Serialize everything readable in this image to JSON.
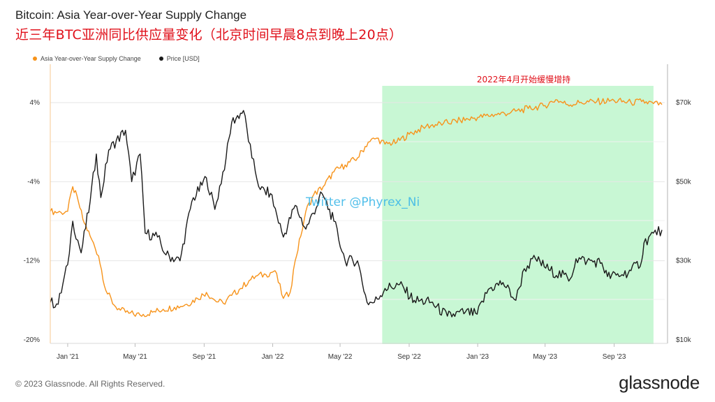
{
  "title": "Bitcoin: Asia Year-over-Year Supply Change",
  "subtitle_cn": "近三年BTC亚洲同比供应量变化（北京时间早晨8点到晚上20点）",
  "legend": [
    {
      "name": "Asia Year-over-Year Supply Change",
      "color": "#f7931a"
    },
    {
      "name": "Price [USD]",
      "color": "#1a1a1a"
    }
  ],
  "annotation": "2022年4月开始缓慢增持",
  "watermark": "Twitter @Phyrex_Ni",
  "footer": {
    "copyright": "© 2023 Glassnode. All Rights Reserved.",
    "logo": "glassnode"
  },
  "colors": {
    "supply": "#f7931a",
    "price": "#1a1a1a",
    "highlight": "#c8f7d4",
    "annotation": "#e0101a",
    "watermark": "#3fb8e8"
  },
  "chart_data": {
    "type": "line",
    "x_ticks": [
      "Jan '21",
      "May '21",
      "Sep '21",
      "Jan '22",
      "May '22",
      "Sep '22",
      "Jan '23",
      "May '23",
      "Sep '23"
    ],
    "x_tick_dates": [
      "2021-01-01",
      "2021-05-01",
      "2021-09-01",
      "2022-01-01",
      "2022-05-01",
      "2022-09-01",
      "2023-01-01",
      "2023-05-01",
      "2023-09-01"
    ],
    "x_range": [
      "2020-12-01",
      "2023-11-30"
    ],
    "y_left": {
      "ticks": [
        "4%",
        "-4%",
        "-12%",
        "-20%"
      ],
      "tick_values": [
        4,
        -4,
        -12,
        -20
      ],
      "range": [
        -20,
        7
      ]
    },
    "y_right": {
      "ticks": [
        "$70k",
        "$50k",
        "$30k",
        "$10k"
      ],
      "tick_values": [
        70000,
        50000,
        30000,
        10000
      ],
      "range": [
        10000,
        78000
      ]
    },
    "highlight_range": [
      "2022-07-15",
      "2023-11-10"
    ],
    "series": [
      {
        "name": "Asia Year-over-Year Supply Change",
        "axis": "left",
        "points": [
          [
            "2020-12-01",
            -7.0
          ],
          [
            "2020-12-20",
            -7.1
          ],
          [
            "2021-01-01",
            -7.0
          ],
          [
            "2021-01-10",
            -4.5
          ],
          [
            "2021-01-20",
            -6.0
          ],
          [
            "2021-01-28",
            -7.8
          ],
          [
            "2021-02-10",
            -9.5
          ],
          [
            "2021-02-25",
            -11.5
          ],
          [
            "2021-03-10",
            -15.0
          ],
          [
            "2021-03-25",
            -16.5
          ],
          [
            "2021-04-05",
            -17.0
          ],
          [
            "2021-04-20",
            -17.3
          ],
          [
            "2021-05-10",
            -17.5
          ],
          [
            "2021-06-01",
            -17.2
          ],
          [
            "2021-06-20",
            -16.9
          ],
          [
            "2021-07-10",
            -16.7
          ],
          [
            "2021-08-01",
            -16.4
          ],
          [
            "2021-08-20",
            -15.8
          ],
          [
            "2021-09-05",
            -15.2
          ],
          [
            "2021-09-20",
            -16.0
          ],
          [
            "2021-10-05",
            -16.3
          ],
          [
            "2021-10-20",
            -15.5
          ],
          [
            "2021-11-05",
            -14.8
          ],
          [
            "2021-11-20",
            -14.0
          ],
          [
            "2021-12-05",
            -13.5
          ],
          [
            "2021-12-20",
            -13.4
          ],
          [
            "2022-01-05",
            -13.0
          ],
          [
            "2022-01-20",
            -15.8
          ],
          [
            "2022-02-01",
            -15.2
          ],
          [
            "2022-02-10",
            -12.0
          ],
          [
            "2022-02-20",
            -9.5
          ],
          [
            "2022-03-01",
            -7.0
          ],
          [
            "2022-03-15",
            -5.3
          ],
          [
            "2022-04-01",
            -4.5
          ],
          [
            "2022-04-20",
            -3.0
          ],
          [
            "2022-05-10",
            -2.3
          ],
          [
            "2022-06-01",
            -1.6
          ],
          [
            "2022-06-20",
            0.0
          ],
          [
            "2022-07-05",
            0.4
          ],
          [
            "2022-07-20",
            -0.2
          ],
          [
            "2022-08-10",
            0.0
          ],
          [
            "2022-09-01",
            0.8
          ],
          [
            "2022-10-01",
            1.6
          ],
          [
            "2022-11-01",
            1.9
          ],
          [
            "2022-12-01",
            2.2
          ],
          [
            "2023-01-01",
            2.5
          ],
          [
            "2023-02-01",
            2.8
          ],
          [
            "2023-03-01",
            3.0
          ],
          [
            "2023-04-01",
            3.4
          ],
          [
            "2023-05-01",
            3.7
          ],
          [
            "2023-05-20",
            4.3
          ],
          [
            "2023-06-10",
            3.8
          ],
          [
            "2023-07-01",
            4.0
          ],
          [
            "2023-08-01",
            4.1
          ],
          [
            "2023-09-01",
            4.2
          ],
          [
            "2023-10-01",
            4.0
          ],
          [
            "2023-10-20",
            4.1
          ],
          [
            "2023-11-10",
            3.9
          ],
          [
            "2023-11-25",
            3.8
          ]
        ]
      },
      {
        "name": "Price [USD]",
        "axis": "right",
        "points": [
          [
            "2020-12-01",
            19500
          ],
          [
            "2020-12-15",
            19000
          ],
          [
            "2021-01-01",
            29000
          ],
          [
            "2021-01-10",
            40000
          ],
          [
            "2021-01-25",
            32000
          ],
          [
            "2021-02-10",
            45000
          ],
          [
            "2021-02-21",
            57000
          ],
          [
            "2021-03-01",
            46000
          ],
          [
            "2021-03-15",
            58000
          ],
          [
            "2021-04-14",
            63000
          ],
          [
            "2021-04-25",
            50000
          ],
          [
            "2021-05-10",
            57000
          ],
          [
            "2021-05-19",
            37000
          ],
          [
            "2021-06-10",
            36000
          ],
          [
            "2021-06-25",
            31500
          ],
          [
            "2021-07-20",
            30000
          ],
          [
            "2021-08-10",
            45000
          ],
          [
            "2021-09-05",
            51000
          ],
          [
            "2021-09-20",
            43000
          ],
          [
            "2021-10-10",
            56000
          ],
          [
            "2021-10-20",
            65000
          ],
          [
            "2021-11-10",
            68000
          ],
          [
            "2021-11-25",
            56000
          ],
          [
            "2021-12-10",
            48000
          ],
          [
            "2021-12-28",
            47000
          ],
          [
            "2022-01-20",
            36000
          ],
          [
            "2022-02-10",
            44000
          ],
          [
            "2022-03-01",
            38000
          ],
          [
            "2022-03-30",
            47000
          ],
          [
            "2022-04-20",
            40000
          ],
          [
            "2022-05-10",
            30000
          ],
          [
            "2022-06-01",
            30000
          ],
          [
            "2022-06-18",
            19500
          ],
          [
            "2022-07-01",
            19500
          ],
          [
            "2022-07-20",
            23000
          ],
          [
            "2022-08-15",
            24000
          ],
          [
            "2022-09-10",
            20000
          ],
          [
            "2022-10-10",
            19500
          ],
          [
            "2022-11-08",
            16000
          ],
          [
            "2022-12-10",
            17000
          ],
          [
            "2022-12-31",
            16500
          ],
          [
            "2023-01-20",
            22800
          ],
          [
            "2023-02-15",
            24500
          ],
          [
            "2023-03-10",
            20000
          ],
          [
            "2023-03-25",
            28000
          ],
          [
            "2023-04-14",
            30500
          ],
          [
            "2023-05-10",
            27500
          ],
          [
            "2023-06-15",
            25500
          ],
          [
            "2023-06-25",
            30500
          ],
          [
            "2023-07-15",
            30000
          ],
          [
            "2023-08-10",
            29500
          ],
          [
            "2023-08-20",
            26000
          ],
          [
            "2023-09-15",
            26500
          ],
          [
            "2023-10-01",
            27500
          ],
          [
            "2023-10-20",
            30000
          ],
          [
            "2023-10-24",
            34500
          ],
          [
            "2023-11-10",
            37000
          ],
          [
            "2023-11-25",
            37800
          ]
        ]
      }
    ]
  }
}
